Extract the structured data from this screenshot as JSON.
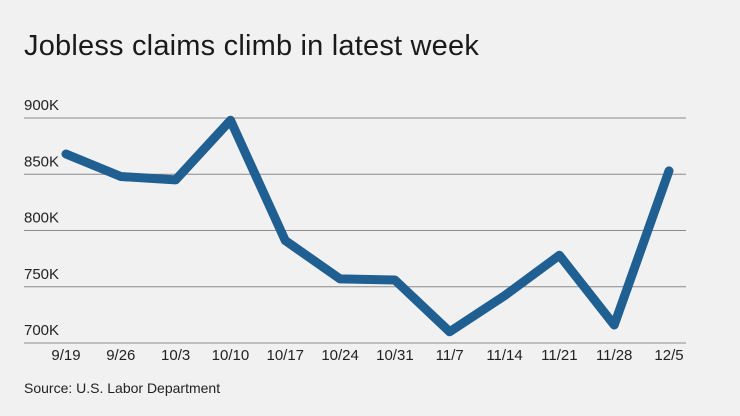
{
  "title": "Jobless claims climb in latest week",
  "source": "Source: U.S. Labor Department",
  "colors": {
    "line": "#1f5f91",
    "grid": "#8a8a8a",
    "background": "#f1f1f1"
  },
  "chart_data": {
    "type": "line",
    "title": "Jobless claims climb in latest week",
    "xlabel": "",
    "ylabel": "",
    "categories": [
      "9/19",
      "9/26",
      "10/3",
      "10/10",
      "10/17",
      "10/24",
      "10/31",
      "11/7",
      "11/14",
      "11/21",
      "11/28",
      "12/5"
    ],
    "values": [
      868000,
      848000,
      845000,
      898000,
      791000,
      757000,
      756000,
      710000,
      742000,
      778000,
      716000,
      853000
    ],
    "yticks": [
      700000,
      750000,
      800000,
      850000,
      900000
    ],
    "ytick_labels": [
      "700K",
      "750K",
      "800K",
      "850K",
      "900K"
    ],
    "ylim": [
      700000,
      900000
    ],
    "grid": true,
    "legend": "none"
  }
}
